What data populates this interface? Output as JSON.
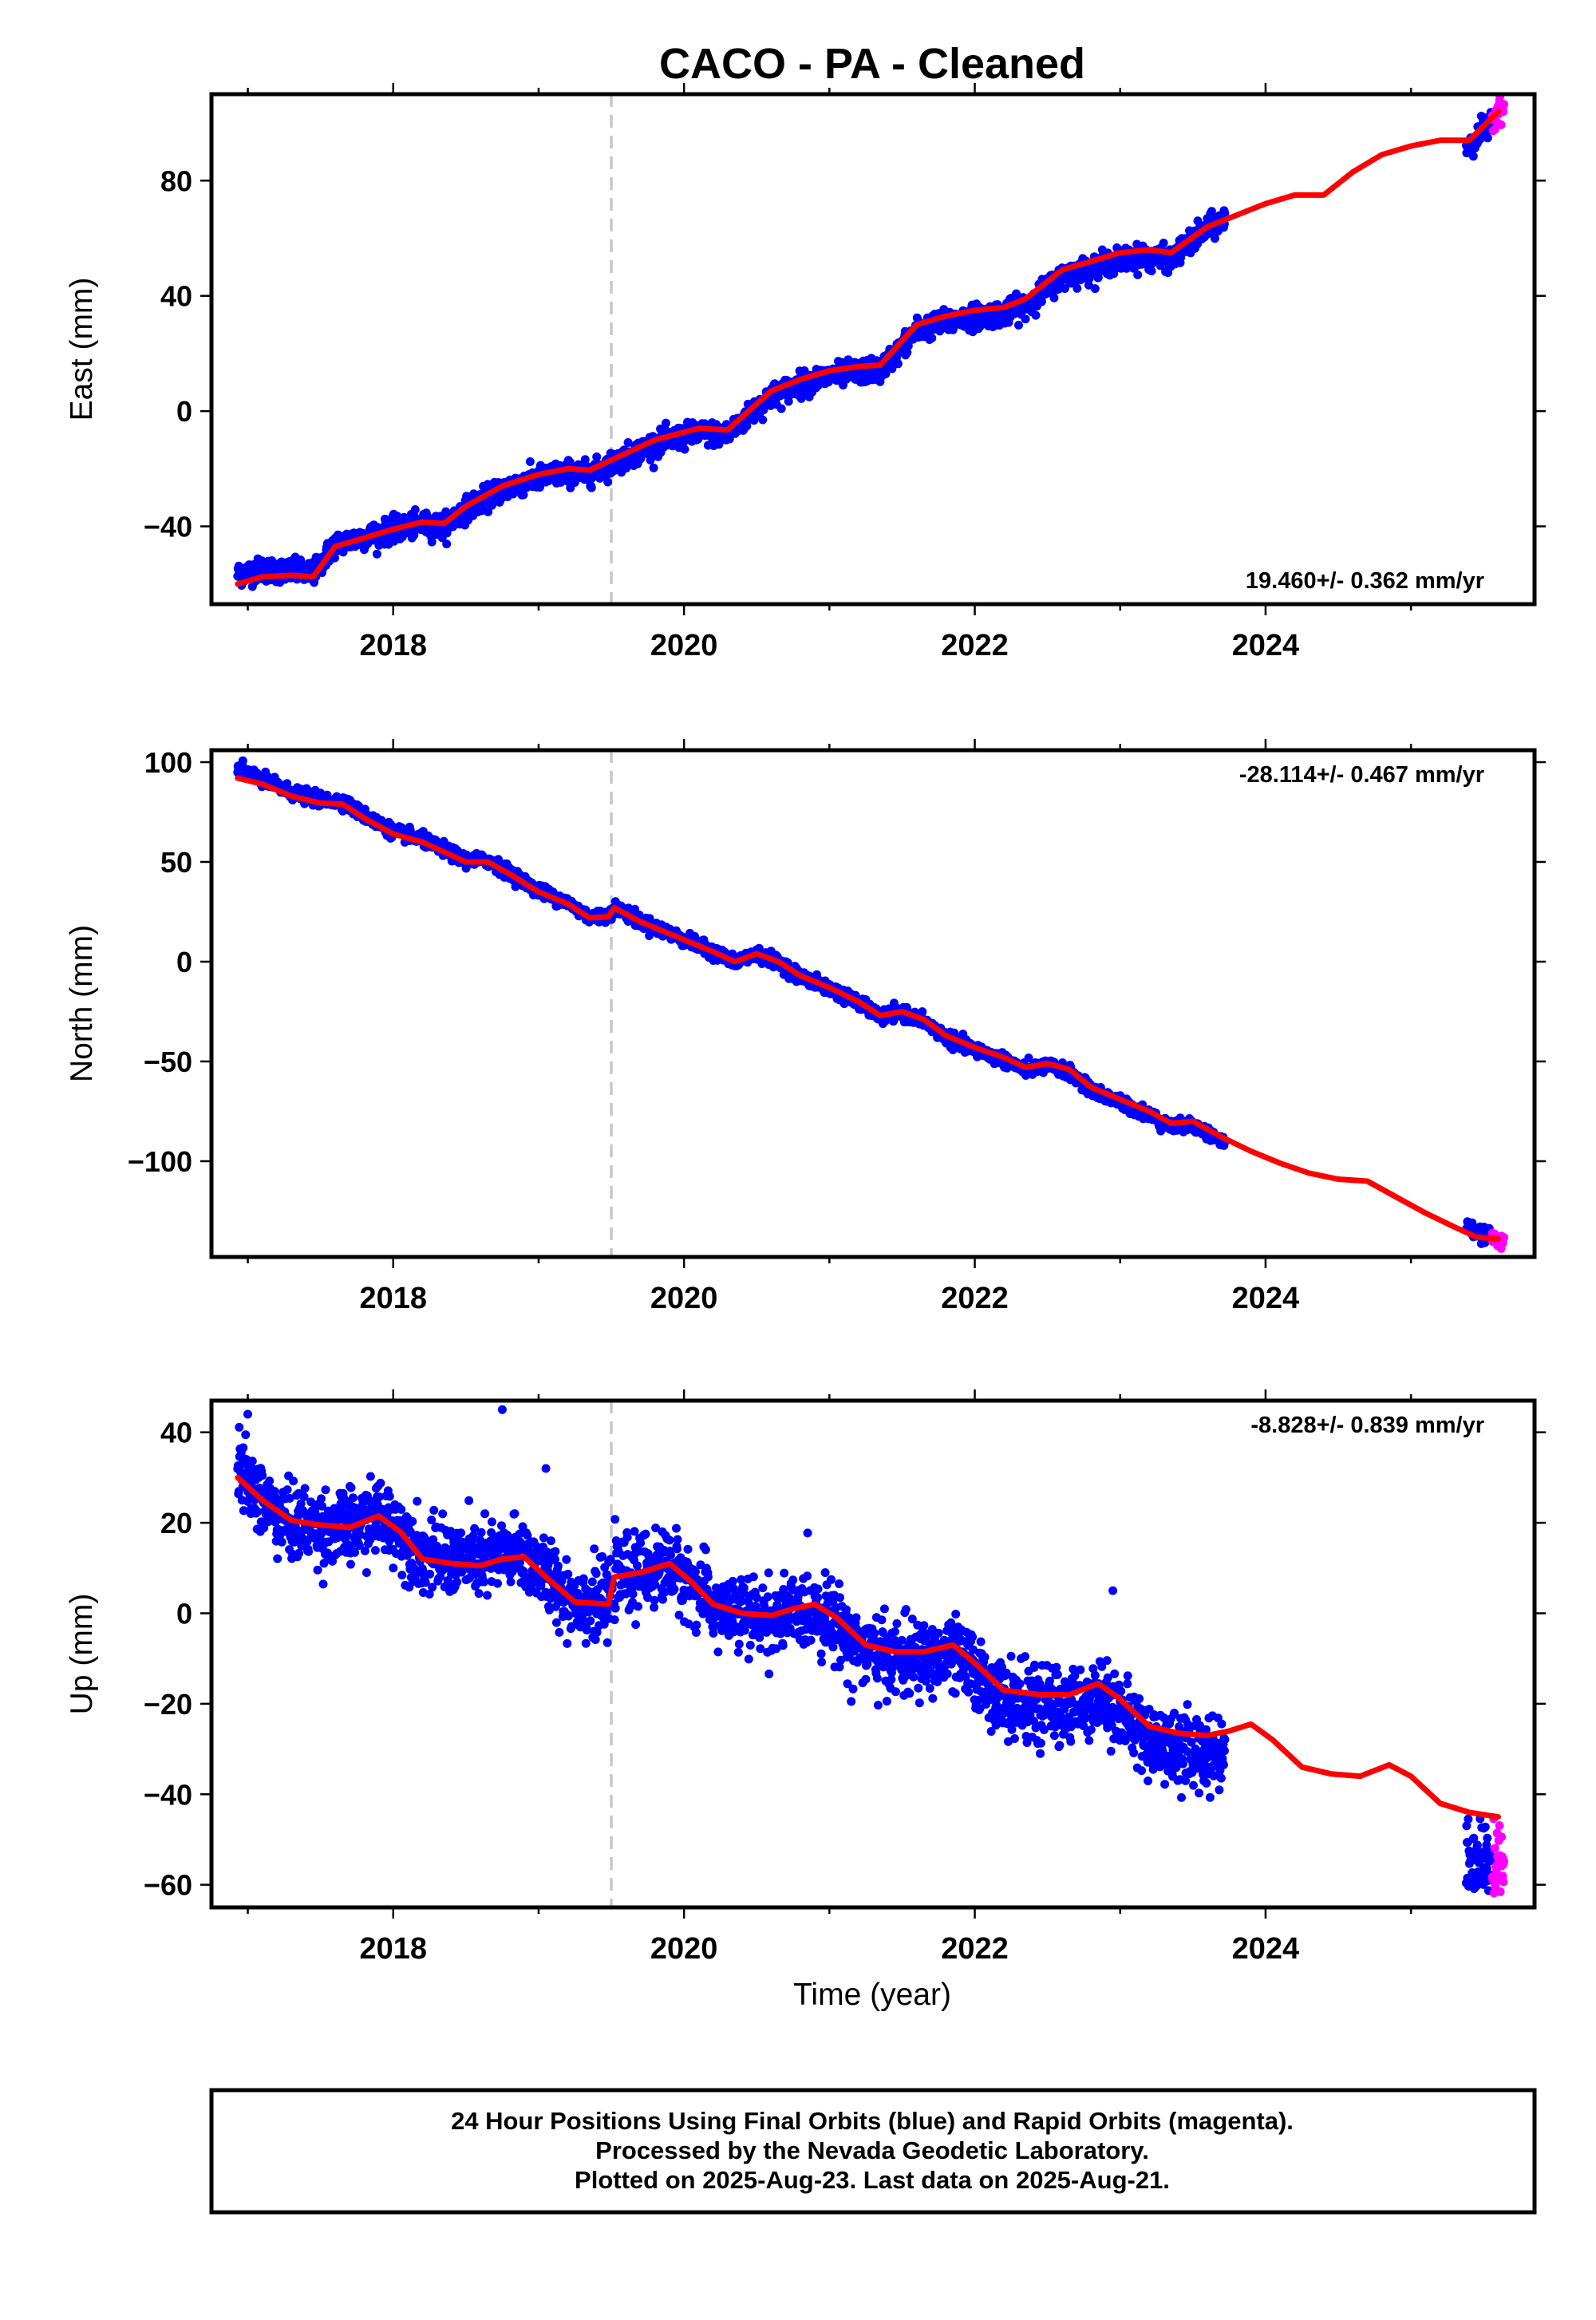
{
  "title": "CACO  - PA - Cleaned",
  "xlabel": "Time (year)",
  "footer": {
    "line1": "24 Hour Positions Using Final Orbits (blue) and Rapid Orbits (magenta).",
    "line2": "Processed by the Nevada Geodetic Laboratory.",
    "line3": "Plotted on 2025-Aug-23. Last data on 2025-Aug-21."
  },
  "colors": {
    "final": "#0000ff",
    "rapid": "#ff00ff",
    "model": "#ff0000",
    "marker": "#c8c8c8"
  },
  "marker_year": 2019.5,
  "chart_data": [
    {
      "id": "east",
      "type": "scatter",
      "ylabel": "East (mm)",
      "rate": "19.460+/- 0.362 mm/yr",
      "xlim": [
        2016.75,
        2025.85
      ],
      "ylim": [
        -67,
        110
      ],
      "xticks": [
        2018,
        2020,
        2022,
        2024
      ],
      "yticks": [
        -40,
        0,
        40,
        80
      ],
      "noise": 2.0,
      "final_span": [
        [
          2016.93,
          2023.72
        ],
        [
          2025.38,
          2025.55
        ]
      ],
      "rapid_span": [
        2025.56,
        2025.64
      ],
      "data_offsets": [
        [
          2016.9,
          3.5
        ],
        [
          2017.3,
          1.5
        ],
        [
          2018.3,
          -1.0
        ],
        [
          2023.3,
          -2.5
        ],
        [
          2023.7,
          0.0
        ],
        [
          2025.4,
          -2.5
        ],
        [
          2025.6,
          0.5
        ]
      ],
      "model": [
        [
          2016.93,
          -60
        ],
        [
          2017.1,
          -57.5
        ],
        [
          2017.3,
          -57
        ],
        [
          2017.45,
          -57.5
        ],
        [
          2017.6,
          -47
        ],
        [
          2017.8,
          -44
        ],
        [
          2018.0,
          -41
        ],
        [
          2018.2,
          -38.5
        ],
        [
          2018.35,
          -39
        ],
        [
          2018.5,
          -33
        ],
        [
          2018.75,
          -26
        ],
        [
          2019.0,
          -22
        ],
        [
          2019.2,
          -20
        ],
        [
          2019.35,
          -20.5
        ],
        [
          2019.5,
          -17
        ],
        [
          2019.8,
          -10
        ],
        [
          2020.1,
          -6
        ],
        [
          2020.3,
          -6.5
        ],
        [
          2020.6,
          7
        ],
        [
          2020.8,
          11
        ],
        [
          2021.0,
          14
        ],
        [
          2021.2,
          15.5
        ],
        [
          2021.35,
          16
        ],
        [
          2021.6,
          30
        ],
        [
          2021.8,
          33
        ],
        [
          2022.0,
          35
        ],
        [
          2022.2,
          36
        ],
        [
          2022.35,
          39
        ],
        [
          2022.6,
          49
        ],
        [
          2022.8,
          52
        ],
        [
          2023.0,
          55
        ],
        [
          2023.2,
          56
        ],
        [
          2023.35,
          55
        ],
        [
          2023.6,
          64
        ],
        [
          2023.8,
          68
        ],
        [
          2024.0,
          72
        ],
        [
          2024.2,
          75
        ],
        [
          2024.4,
          75
        ],
        [
          2024.6,
          83
        ],
        [
          2024.8,
          89
        ],
        [
          2025.0,
          92
        ],
        [
          2025.2,
          94
        ],
        [
          2025.4,
          94
        ],
        [
          2025.6,
          104
        ]
      ]
    },
    {
      "id": "north",
      "type": "scatter",
      "ylabel": "North (mm)",
      "rate": "-28.114+/- 0.467 mm/yr",
      "xlim": [
        2016.75,
        2025.85
      ],
      "ylim": [
        -148,
        106
      ],
      "xticks": [
        2018,
        2020,
        2022,
        2024
      ],
      "yticks": [
        -100,
        -50,
        0,
        50,
        100
      ],
      "noise": 1.6,
      "final_span": [
        [
          2016.93,
          2023.72
        ],
        [
          2025.38,
          2025.55
        ]
      ],
      "rapid_span": [
        2025.56,
        2025.64
      ],
      "data_offsets": [
        [
          2016.9,
          6
        ],
        [
          2017.1,
          2
        ],
        [
          2017.5,
          1.5
        ],
        [
          2023.7,
          -2
        ],
        [
          2025.4,
          3
        ],
        [
          2025.6,
          0
        ]
      ],
      "model": [
        [
          2016.93,
          92
        ],
        [
          2017.1,
          89
        ],
        [
          2017.3,
          83
        ],
        [
          2017.5,
          79.5
        ],
        [
          2017.65,
          79
        ],
        [
          2017.8,
          72
        ],
        [
          2018.0,
          64
        ],
        [
          2018.2,
          60
        ],
        [
          2018.35,
          55
        ],
        [
          2018.5,
          50
        ],
        [
          2018.65,
          50
        ],
        [
          2018.8,
          44
        ],
        [
          2019.0,
          35
        ],
        [
          2019.2,
          29
        ],
        [
          2019.35,
          22
        ],
        [
          2019.48,
          22.5
        ],
        [
          2019.52,
          27
        ],
        [
          2019.7,
          20
        ],
        [
          2020.0,
          11
        ],
        [
          2020.2,
          5
        ],
        [
          2020.35,
          0
        ],
        [
          2020.5,
          4
        ],
        [
          2020.65,
          0
        ],
        [
          2020.8,
          -7
        ],
        [
          2021.0,
          -13
        ],
        [
          2021.2,
          -20
        ],
        [
          2021.35,
          -27
        ],
        [
          2021.5,
          -25
        ],
        [
          2021.65,
          -29
        ],
        [
          2021.8,
          -37
        ],
        [
          2022.0,
          -43
        ],
        [
          2022.2,
          -48
        ],
        [
          2022.35,
          -53
        ],
        [
          2022.5,
          -51
        ],
        [
          2022.65,
          -54
        ],
        [
          2022.8,
          -63
        ],
        [
          2023.0,
          -69
        ],
        [
          2023.2,
          -75
        ],
        [
          2023.35,
          -81
        ],
        [
          2023.5,
          -80
        ],
        [
          2023.7,
          -88
        ],
        [
          2023.9,
          -95
        ],
        [
          2024.1,
          -101
        ],
        [
          2024.3,
          -106
        ],
        [
          2024.5,
          -109
        ],
        [
          2024.7,
          -110
        ],
        [
          2024.9,
          -118
        ],
        [
          2025.1,
          -126
        ],
        [
          2025.3,
          -133
        ],
        [
          2025.45,
          -138
        ],
        [
          2025.6,
          -139
        ]
      ]
    },
    {
      "id": "up",
      "type": "scatter",
      "ylabel": "Up (mm)",
      "rate": "-8.828+/- 0.839 mm/yr",
      "xlim": [
        2016.75,
        2025.85
      ],
      "ylim": [
        -65,
        47
      ],
      "xticks": [
        2018,
        2020,
        2022,
        2024
      ],
      "yticks": [
        -60,
        -40,
        -20,
        0,
        20,
        40
      ],
      "noise": 4.0,
      "final_span": [
        [
          2016.93,
          2023.72
        ],
        [
          2025.38,
          2025.55
        ]
      ],
      "rapid_span": [
        2025.56,
        2025.64
      ],
      "data_offsets": [
        [
          2016.9,
          2
        ],
        [
          2017.2,
          -1
        ],
        [
          2018.5,
          1
        ],
        [
          2019.5,
          0
        ],
        [
          2023.3,
          -3
        ],
        [
          2023.7,
          -4
        ],
        [
          2025.4,
          -10
        ],
        [
          2025.6,
          -10
        ]
      ],
      "model": [
        [
          2016.93,
          30
        ],
        [
          2017.1,
          25
        ],
        [
          2017.3,
          20.5
        ],
        [
          2017.5,
          19.5
        ],
        [
          2017.7,
          19
        ],
        [
          2017.9,
          21.5
        ],
        [
          2018.05,
          18
        ],
        [
          2018.2,
          12
        ],
        [
          2018.4,
          11
        ],
        [
          2018.6,
          10.5
        ],
        [
          2018.75,
          12
        ],
        [
          2018.9,
          12.5
        ],
        [
          2019.05,
          8
        ],
        [
          2019.25,
          2.5
        ],
        [
          2019.48,
          2
        ],
        [
          2019.52,
          8
        ],
        [
          2019.7,
          9
        ],
        [
          2019.9,
          11
        ],
        [
          2020.05,
          7
        ],
        [
          2020.2,
          2
        ],
        [
          2020.4,
          0
        ],
        [
          2020.6,
          -0.5
        ],
        [
          2020.75,
          1
        ],
        [
          2020.9,
          2
        ],
        [
          2021.05,
          -1
        ],
        [
          2021.25,
          -7
        ],
        [
          2021.45,
          -8.5
        ],
        [
          2021.65,
          -8.5
        ],
        [
          2021.85,
          -7
        ],
        [
          2022.0,
          -11
        ],
        [
          2022.2,
          -17
        ],
        [
          2022.45,
          -18
        ],
        [
          2022.65,
          -18
        ],
        [
          2022.85,
          -15.5
        ],
        [
          2023.0,
          -19
        ],
        [
          2023.2,
          -25
        ],
        [
          2023.4,
          -26.5
        ],
        [
          2023.6,
          -27
        ],
        [
          2023.75,
          -26
        ],
        [
          2023.9,
          -24.5
        ],
        [
          2024.05,
          -28
        ],
        [
          2024.25,
          -34
        ],
        [
          2024.45,
          -35.5
        ],
        [
          2024.65,
          -36
        ],
        [
          2024.85,
          -33.5
        ],
        [
          2025.0,
          -36
        ],
        [
          2025.2,
          -42
        ],
        [
          2025.4,
          -44
        ],
        [
          2025.6,
          -45
        ]
      ],
      "outliers": [
        [
          2017.0,
          44
        ],
        [
          2018.75,
          45
        ],
        [
          2019.05,
          32
        ],
        [
          2021.15,
          -19.5
        ],
        [
          2022.45,
          -31
        ],
        [
          2022.95,
          5
        ],
        [
          2023.45,
          -37
        ]
      ]
    }
  ]
}
